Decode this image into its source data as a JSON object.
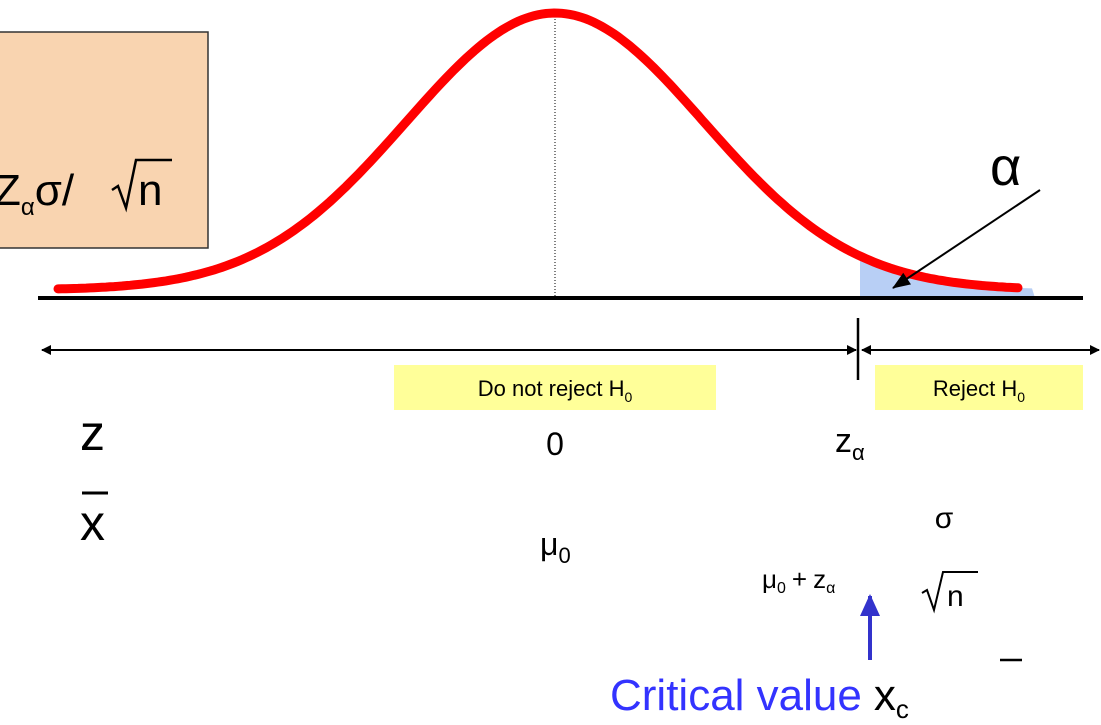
{
  "box": {
    "main": "Z",
    "sub": "α",
    "rest": "σ/",
    "radicand": "n"
  },
  "alpha_label": "α",
  "regions": {
    "do_not_reject": {
      "text": "Do not reject H",
      "sub": "0"
    },
    "reject": {
      "text": "Reject H",
      "sub": "0"
    }
  },
  "axis_labels": {
    "z": "z",
    "xbar": "x"
  },
  "z_values": {
    "zero": "0",
    "z_alpha": {
      "text": "z",
      "sub": "α"
    }
  },
  "x_values": {
    "mu0": {
      "text": "μ",
      "sub": "0"
    },
    "critical": {
      "mu": "μ",
      "mu_sub": "0",
      "plus": "+",
      "z": "z",
      "z_sub": "α",
      "num": "σ",
      "den": "n"
    }
  },
  "critical_label": {
    "text": "Critical value",
    "symbol": "x",
    "sub": "c"
  }
}
